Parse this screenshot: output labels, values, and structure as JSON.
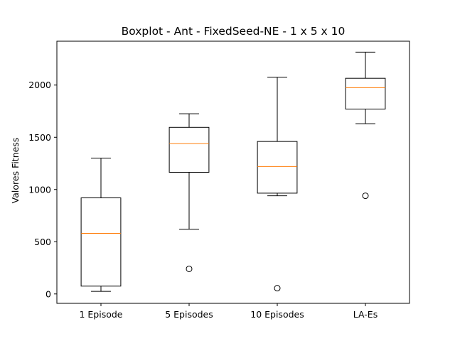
{
  "chart_data": {
    "type": "boxplot",
    "title": "Boxplot - Ant - FixedSeed-NE - 1 x 5 x 10",
    "xlabel": "",
    "ylabel": "Valores Fitness",
    "ylim": [
      -90,
      2420
    ],
    "yticks": [
      0,
      500,
      1000,
      1500,
      2000
    ],
    "grid": false,
    "categories": [
      "1 Episode",
      "5 Episodes",
      "10 Episodes",
      "LA-Es"
    ],
    "boxes": [
      {
        "category": "1 Episode",
        "whisker_low": 25,
        "q1": 75,
        "median": 580,
        "q3": 920,
        "whisker_high": 1300,
        "outliers": []
      },
      {
        "category": "5 Episodes",
        "whisker_low": 620,
        "q1": 1165,
        "median": 1440,
        "q3": 1595,
        "whisker_high": 1725,
        "outliers": [
          240
        ]
      },
      {
        "category": "10 Episodes",
        "whisker_low": 940,
        "q1": 965,
        "median": 1220,
        "q3": 1460,
        "whisker_high": 2075,
        "outliers": [
          55
        ]
      },
      {
        "category": "LA-Es",
        "whisker_low": 1630,
        "q1": 1770,
        "median": 1975,
        "q3": 2065,
        "whisker_high": 2315,
        "outliers": [
          940
        ]
      }
    ],
    "colors": {
      "box": "#000000",
      "median": "#ff7f0e"
    }
  }
}
